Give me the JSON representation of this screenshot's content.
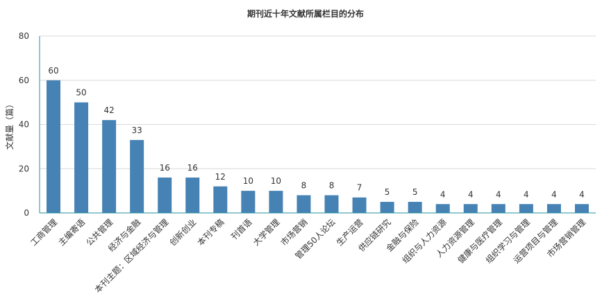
{
  "chart_data": {
    "type": "bar",
    "title": "期刊近十年文献所属栏目的分布",
    "xlabel": "",
    "ylabel": "文献量（篇）",
    "ylim": [
      0,
      80
    ],
    "yticks": [
      0,
      20,
      40,
      60,
      80
    ],
    "grid": true,
    "legend": "none",
    "bar_color": "#4682b4",
    "axis_color": "#1f8f9f",
    "categories": [
      "工商管理",
      "主编寄语",
      "公共管理",
      "经济与金融",
      "本刊主题：区域经济与管理",
      "创新创业",
      "本刊专稿",
      "刊首语",
      "大学管理",
      "市场营销",
      "管理50人论坛",
      "生产运营",
      "供应链研究",
      "金融与保险",
      "组织与人力资源",
      "人力资源管理",
      "健康与医疗管理",
      "组织学习与管理",
      "运营项目与管理",
      "市场营销管理"
    ],
    "values": [
      60,
      50,
      42,
      33,
      16,
      16,
      12,
      10,
      10,
      8,
      8,
      7,
      5,
      5,
      4,
      4,
      4,
      4,
      4,
      4
    ]
  }
}
